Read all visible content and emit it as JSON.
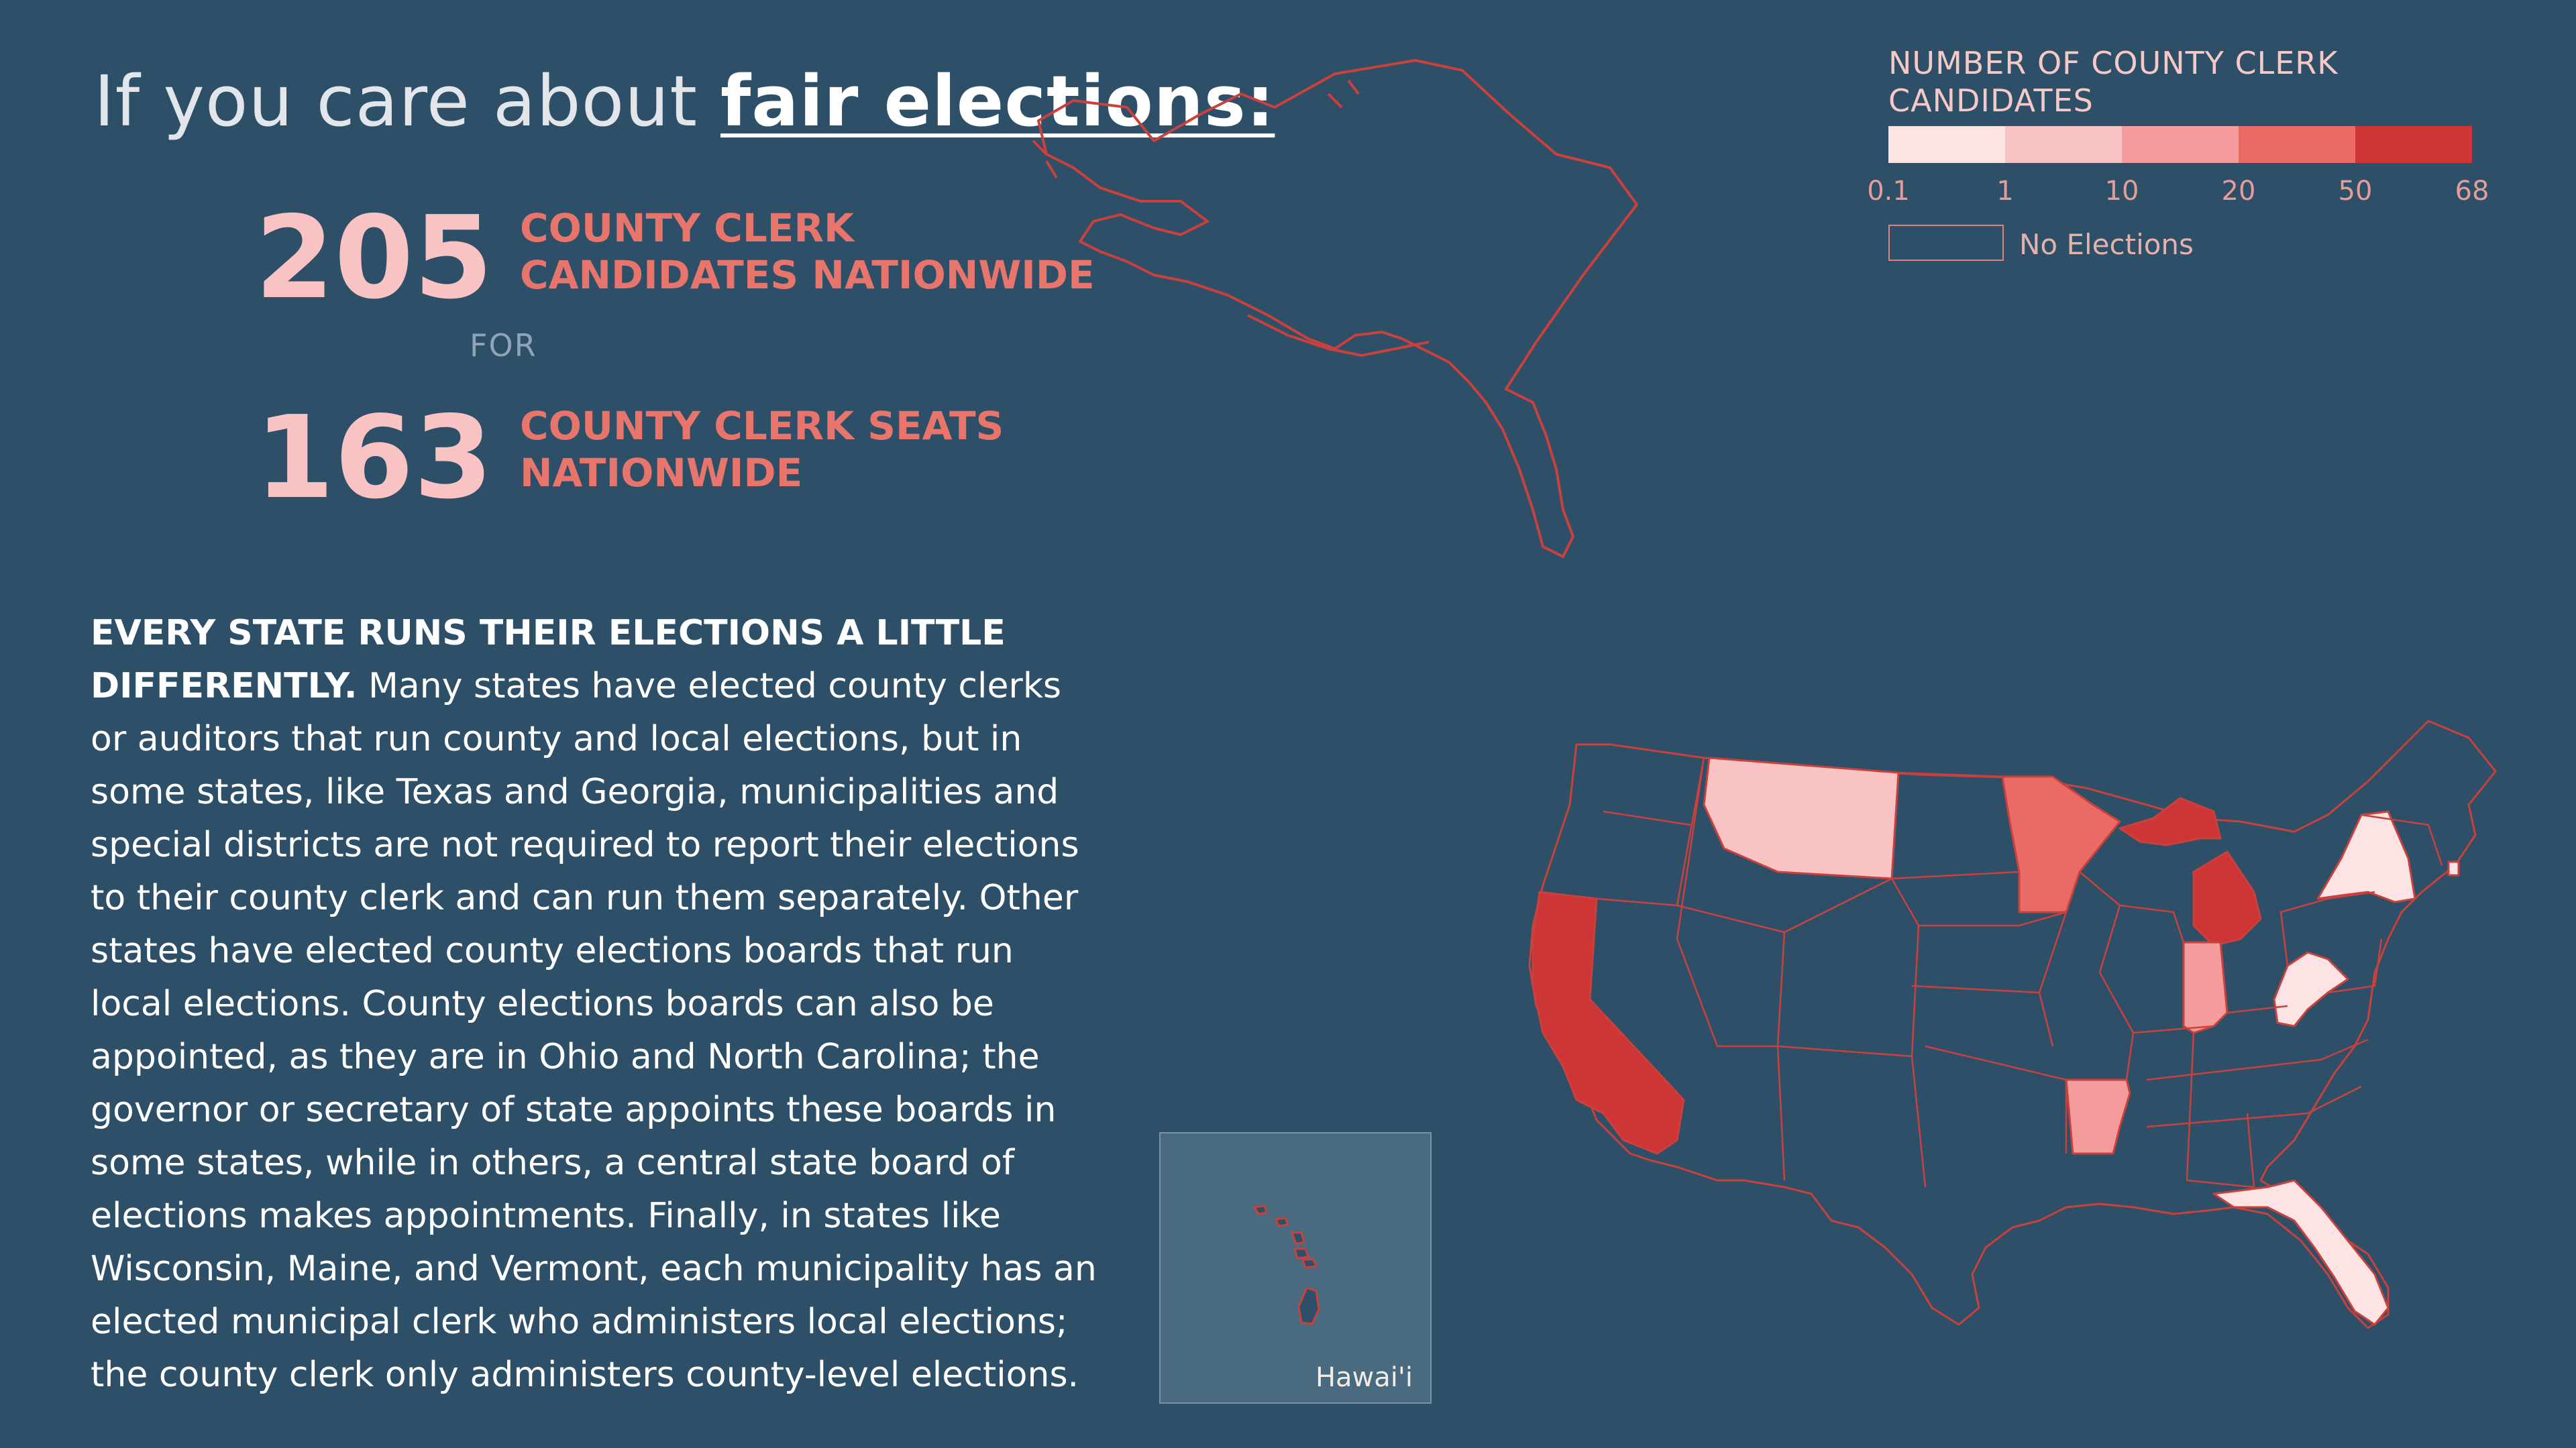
{
  "title": {
    "prefix": "If you care about ",
    "emphasis": "fair elections:"
  },
  "stats": {
    "candidates": {
      "value": "205",
      "label_line1": "COUNTY CLERK",
      "label_line2": "CANDIDATES NATIONWIDE"
    },
    "connector": "FOR",
    "seats": {
      "value": "163",
      "label_line1": "COUNTY CLERK SEATS",
      "label_line2": "NATIONWIDE"
    }
  },
  "body": {
    "lead": "EVERY STATE RUNS THEIR ELECTIONS A LITTLE DIFFERENTLY.",
    "text": "Many states have elected county clerks or auditors that run county and local elections, but in some states, like Texas and Georgia, municipalities and special districts are not required to report their elections to their county clerk and can run them separately. Other states have elected county elections boards that run local elections. County elections boards can also be appointed, as they are in Ohio and North Carolina; the governor or secretary of state appoints these boards in some states, while in others, a central state board of elections makes appointments. Finally, in states like Wisconsin, Maine, and Vermont, each municipality has an elected municipal clerk who administers local elections; the county clerk only administers county-level elections."
  },
  "legend": {
    "title_line1": "NUMBER OF COUNTY CLERK",
    "title_line2": "CANDIDATES",
    "ticks": [
      "0.1",
      "1",
      "10",
      "20",
      "50",
      "68"
    ],
    "colors": [
      "#fde3e3",
      "#f9c3c4",
      "#f49c9c",
      "#ea6a66",
      "#cd3536"
    ],
    "no_elections": "No Elections"
  },
  "map": {
    "no_election_color": "#2d4f68",
    "stroke_color": "#c9413d",
    "highlighted_states": [
      {
        "state": "California",
        "fill": "#cd3536"
      },
      {
        "state": "Michigan",
        "fill": "#cd3536"
      },
      {
        "state": "Minnesota",
        "fill": "#ea6a66"
      },
      {
        "state": "Montana",
        "fill": "#f9c3c4"
      },
      {
        "state": "Indiana",
        "fill": "#f49c9c"
      },
      {
        "state": "Arkansas",
        "fill": "#f49c9c"
      },
      {
        "state": "West Virginia",
        "fill": "#fde3e3"
      },
      {
        "state": "New York",
        "fill": "#fde3e3"
      },
      {
        "state": "Florida",
        "fill": "#fde3e3"
      },
      {
        "state": "Rhode Island",
        "fill": "#fde3e3"
      }
    ],
    "inset_label": "Hawai'i"
  }
}
